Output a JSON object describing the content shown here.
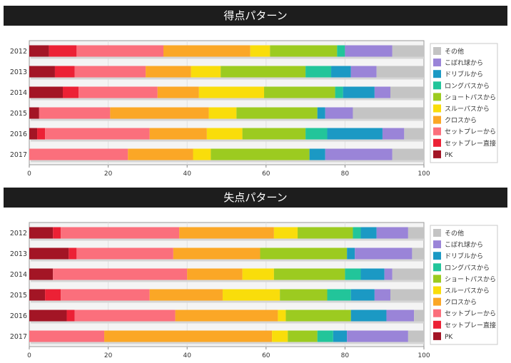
{
  "colors": {
    "PK": "#a31525",
    "セットプレー直接": "#ec2135",
    "セットプレーから": "#fb6f7c",
    "クロスから": "#fba726",
    "スルーパスから": "#f9dd0b",
    "ショートパスから": "#9ccb20",
    "ロングパスから": "#22c59a",
    "ドリブルから": "#1b99c4",
    "こぼれ球から": "#9a84d8",
    "その他": "#c4c4c4"
  },
  "chart_data": [
    {
      "type": "bar",
      "orientation": "horizontal",
      "stacked": true,
      "title": "得点パターン",
      "categories": [
        "2012",
        "2013",
        "2014",
        "2015",
        "2016",
        "2017"
      ],
      "xlim": [
        0,
        100
      ],
      "xticks": [
        "0",
        "20",
        "40",
        "60",
        "80",
        "100"
      ],
      "legend_position": "right",
      "legend": [
        "その他",
        "こぼれ球から",
        "ドリブルから",
        "ロングパスから",
        "ショートパスから",
        "スルーパスから",
        "クロスから",
        "セットプレーから",
        "セットプレー直接",
        "PK"
      ],
      "series": [
        {
          "name": "PK",
          "values": [
            5.0,
            6.5,
            8.5,
            2.5,
            2.0,
            0
          ]
        },
        {
          "name": "セットプレー直接",
          "values": [
            7.0,
            5.0,
            4.0,
            0,
            2.0,
            0
          ]
        },
        {
          "name": "セットプレーから",
          "values": [
            22.0,
            18.0,
            20.0,
            18.0,
            26.5,
            25.0
          ]
        },
        {
          "name": "クロスから",
          "values": [
            22.0,
            11.5,
            10.5,
            25.0,
            14.5,
            16.5
          ]
        },
        {
          "name": "スルーパスから",
          "values": [
            5.0,
            7.5,
            16.5,
            7.0,
            9.0,
            4.5
          ]
        },
        {
          "name": "ショートパスから",
          "values": [
            17.0,
            21.5,
            18.0,
            20.5,
            16.0,
            25.0
          ]
        },
        {
          "name": "ロングパスから",
          "values": [
            2.0,
            6.5,
            2.0,
            0,
            5.5,
            0
          ]
        },
        {
          "name": "ドリブルから",
          "values": [
            0,
            5.0,
            8.0,
            2.0,
            14.0,
            4.0
          ]
        },
        {
          "name": "こぼれ球から",
          "values": [
            12.0,
            6.5,
            4.0,
            7.0,
            5.5,
            17.0
          ]
        },
        {
          "name": "その他",
          "values": [
            8.0,
            12.0,
            8.5,
            18.0,
            5.0,
            8.0
          ]
        }
      ]
    },
    {
      "type": "bar",
      "orientation": "horizontal",
      "stacked": true,
      "title": "失点パターン",
      "categories": [
        "2012",
        "2013",
        "2014",
        "2015",
        "2016",
        "2017"
      ],
      "xlim": [
        0,
        100
      ],
      "xticks": [
        "0",
        "20",
        "40",
        "60",
        "80",
        "100"
      ],
      "legend_position": "right",
      "legend": [
        "その他",
        "こぼれ球から",
        "ドリブルから",
        "ロングパスから",
        "ショートパスから",
        "スルーパスから",
        "クロスから",
        "セットプレーから",
        "セットプレー直接",
        "PK"
      ],
      "series": [
        {
          "name": "PK",
          "values": [
            6.0,
            10.0,
            6.0,
            4.0,
            9.5,
            0
          ]
        },
        {
          "name": "セットプレー直接",
          "values": [
            2.0,
            2.0,
            0,
            4.0,
            2.0,
            0
          ]
        },
        {
          "name": "セットプレーから",
          "values": [
            30.0,
            24.5,
            34.0,
            22.5,
            25.5,
            19.0
          ]
        },
        {
          "name": "クロスから",
          "values": [
            24.0,
            22.0,
            14.0,
            18.5,
            26.0,
            42.5
          ]
        },
        {
          "name": "スルーパスから",
          "values": [
            6.0,
            0,
            8.0,
            14.5,
            2.0,
            4.0
          ]
        },
        {
          "name": "ショートパスから",
          "values": [
            14.0,
            22.0,
            18.0,
            12.0,
            16.5,
            7.5
          ]
        },
        {
          "name": "ロングパスから",
          "values": [
            2.0,
            0,
            4.0,
            6.0,
            0,
            4.0
          ]
        },
        {
          "name": "ドリブルから",
          "values": [
            4.0,
            2.0,
            6.0,
            6.0,
            9.0,
            3.5
          ]
        },
        {
          "name": "こぼれ球から",
          "values": [
            8.0,
            14.5,
            2.0,
            4.0,
            7.0,
            15.5
          ]
        },
        {
          "name": "その他",
          "values": [
            4.0,
            3.0,
            8.0,
            8.5,
            2.5,
            4.0
          ]
        }
      ]
    }
  ]
}
